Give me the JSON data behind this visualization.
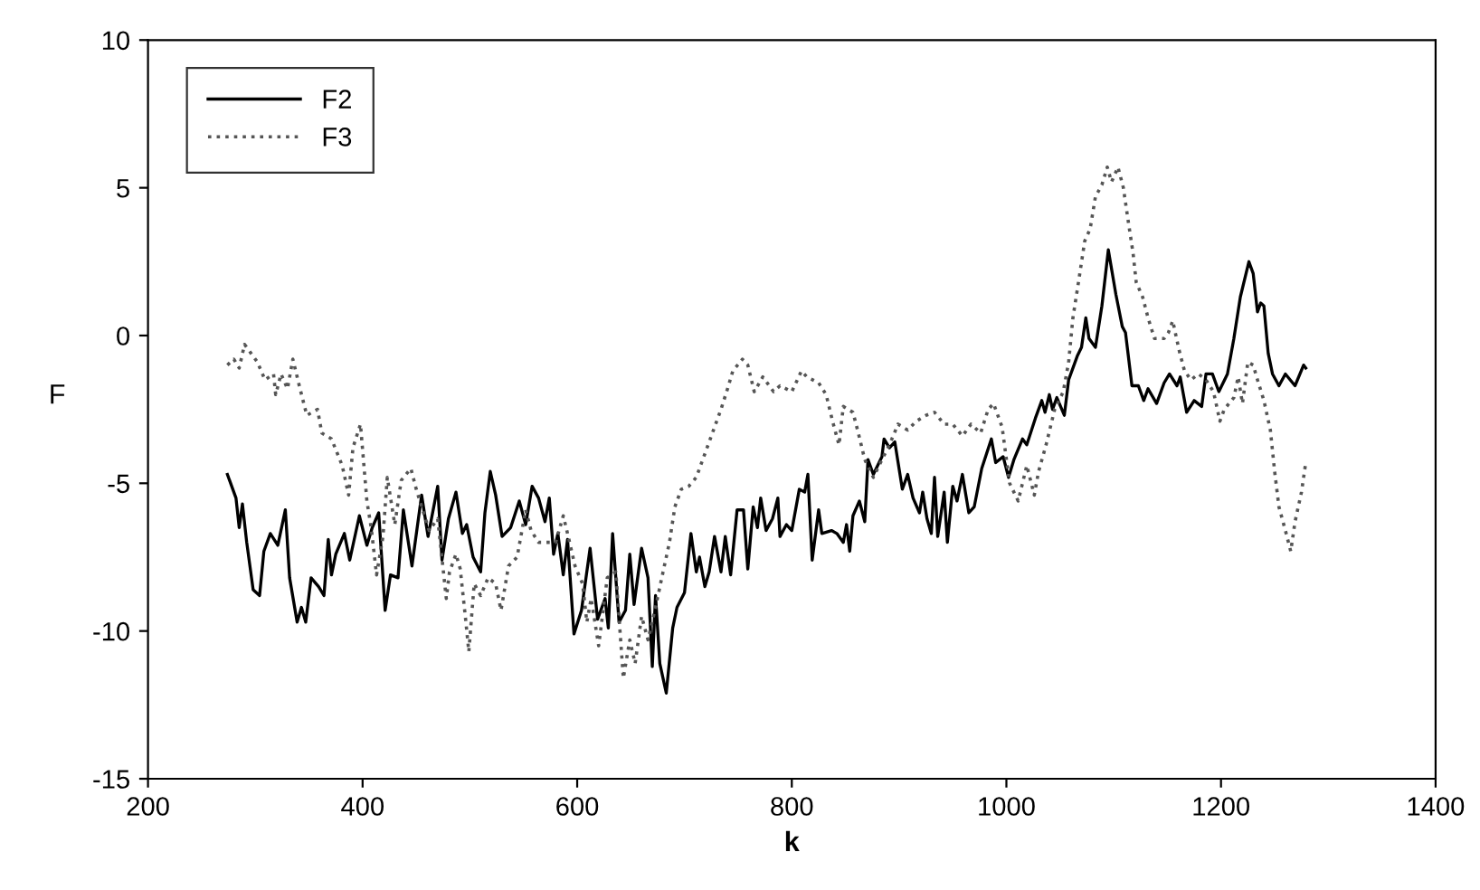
{
  "chart_data": {
    "type": "line",
    "xlabel": "k",
    "ylabel": "F",
    "xlim": [
      200,
      1400
    ],
    "xticks": [
      200,
      400,
      600,
      800,
      1000,
      1200,
      1400
    ],
    "ylim": [
      -15,
      10
    ],
    "yticks": [
      -15,
      -10,
      -5,
      0,
      5,
      10
    ],
    "grid": false,
    "legend": "top left",
    "marker": "none",
    "series": [
      {
        "name": "F2",
        "color": "#000000",
        "line_style": "solid",
        "x": [
          274,
          282,
          285,
          288,
          292,
          298,
          304,
          308,
          314,
          321,
          328,
          332,
          339,
          343,
          347,
          352,
          359,
          364,
          368,
          371,
          375,
          383,
          388,
          397,
          404,
          409,
          415,
          421,
          426,
          433,
          438,
          446,
          455,
          461,
          470,
          474,
          480,
          487,
          493,
          497,
          503,
          510,
          514,
          519,
          524,
          530,
          538,
          546,
          552,
          558,
          564,
          570,
          574,
          578,
          582,
          587,
          591,
          597,
          604,
          612,
          619,
          626,
          629,
          633,
          639,
          645,
          649,
          653,
          660,
          666,
          670,
          673,
          677,
          683,
          689,
          693,
          700,
          706,
          711,
          714,
          719,
          723,
          728,
          734,
          738,
          743,
          749,
          755,
          759,
          764,
          768,
          771,
          776,
          782,
          787,
          789,
          795,
          800,
          807,
          812,
          815,
          819,
          825,
          828,
          837,
          842,
          848,
          851,
          854,
          857,
          863,
          868,
          871,
          876,
          884,
          886,
          891,
          896,
          903,
          908,
          913,
          919,
          922,
          926,
          930,
          933,
          936,
          942,
          945,
          950,
          954,
          959,
          965,
          970,
          977,
          986,
          990,
          997,
          1002,
          1007,
          1015,
          1019,
          1027,
          1033,
          1036,
          1040,
          1043,
          1047,
          1054,
          1058,
          1066,
          1070,
          1074,
          1077,
          1083,
          1089,
          1095,
          1102,
          1108,
          1111,
          1117,
          1123,
          1128,
          1132,
          1140,
          1147,
          1152,
          1159,
          1162,
          1168,
          1175,
          1182,
          1186,
          1192,
          1198,
          1206,
          1212,
          1218,
          1226,
          1230,
          1234,
          1237,
          1240,
          1244,
          1248,
          1254,
          1260,
          1269,
          1277,
          1279
        ],
        "values": [
          -4.7,
          -5.5,
          -6.5,
          -5.7,
          -7.0,
          -8.6,
          -8.8,
          -7.3,
          -6.7,
          -7.1,
          -5.9,
          -8.2,
          -9.7,
          -9.2,
          -9.7,
          -8.2,
          -8.5,
          -8.8,
          -6.9,
          -8.1,
          -7.4,
          -6.7,
          -7.6,
          -6.1,
          -7.1,
          -6.5,
          -6.0,
          -9.3,
          -8.1,
          -8.2,
          -5.9,
          -7.8,
          -5.4,
          -6.8,
          -5.1,
          -7.6,
          -6.2,
          -5.3,
          -6.7,
          -6.4,
          -7.5,
          -8.0,
          -6.0,
          -4.6,
          -5.4,
          -6.8,
          -6.5,
          -5.6,
          -6.4,
          -5.1,
          -5.5,
          -6.3,
          -5.5,
          -7.4,
          -6.7,
          -8.1,
          -6.9,
          -10.1,
          -9.3,
          -7.2,
          -9.6,
          -8.9,
          -9.9,
          -6.7,
          -9.7,
          -9.3,
          -7.4,
          -9.1,
          -7.2,
          -8.2,
          -11.2,
          -8.8,
          -11.1,
          -12.1,
          -9.9,
          -9.2,
          -8.7,
          -6.7,
          -8.0,
          -7.5,
          -8.5,
          -8.0,
          -6.8,
          -8.0,
          -6.8,
          -8.1,
          -5.9,
          -5.9,
          -7.9,
          -5.8,
          -6.5,
          -5.5,
          -6.6,
          -6.2,
          -5.5,
          -6.8,
          -6.4,
          -6.6,
          -5.2,
          -5.3,
          -4.7,
          -7.6,
          -5.9,
          -6.7,
          -6.6,
          -6.7,
          -7.0,
          -6.4,
          -7.3,
          -6.1,
          -5.6,
          -6.3,
          -4.2,
          -4.7,
          -4.1,
          -3.5,
          -3.8,
          -3.6,
          -5.2,
          -4.7,
          -5.5,
          -6.0,
          -5.3,
          -6.2,
          -6.7,
          -4.8,
          -6.8,
          -5.3,
          -7.0,
          -5.1,
          -5.6,
          -4.7,
          -6.0,
          -5.8,
          -4.5,
          -3.5,
          -4.3,
          -4.1,
          -4.8,
          -4.2,
          -3.5,
          -3.7,
          -2.8,
          -2.2,
          -2.6,
          -2.0,
          -2.5,
          -2.1,
          -2.7,
          -1.5,
          -0.7,
          -0.4,
          0.6,
          -0.1,
          -0.4,
          1.0,
          2.9,
          1.4,
          0.3,
          0.1,
          -1.7,
          -1.7,
          -2.2,
          -1.8,
          -2.3,
          -1.6,
          -1.3,
          -1.7,
          -1.4,
          -2.6,
          -2.2,
          -2.4,
          -1.3,
          -1.3,
          -1.9,
          -1.3,
          -0.1,
          1.3,
          2.5,
          2.1,
          0.8,
          1.1,
          1.0,
          -0.6,
          -1.3,
          -1.7,
          -1.3,
          -1.7,
          -1.0,
          -1.1
        ]
      },
      {
        "name": "F3",
        "color": "#555555",
        "line_style": "dotted",
        "x": [
          274,
          280,
          285,
          290,
          296,
          302,
          309,
          317,
          319,
          324,
          330,
          335,
          341,
          348,
          358,
          362,
          371,
          381,
          387,
          391,
          398,
          404,
          408,
          413,
          419,
          423,
          430,
          436,
          445,
          450,
          462,
          470,
          478,
          481,
          487,
          491,
          496,
          499,
          504,
          510,
          517,
          524,
          529,
          536,
          544,
          552,
          557,
          564,
          573,
          580,
          587,
          591,
          598,
          605,
          609,
          613,
          620,
          628,
          636,
          643,
          649,
          654,
          660,
          666,
          673,
          680,
          686,
          691,
          697,
          704,
          711,
          717,
          724,
          734,
          741,
          745,
          754,
          759,
          765,
          773,
          783,
          789,
          800,
          809,
          814,
          825,
          832,
          838,
          844,
          848,
          857,
          862,
          868,
          876,
          884,
          891,
          899,
          908,
          916,
          925,
          933,
          942,
          950,
          959,
          967,
          976,
          983,
          988,
          996,
          1003,
          1011,
          1019,
          1026,
          1030,
          1037,
          1045,
          1053,
          1058,
          1062,
          1068,
          1073,
          1078,
          1083,
          1089,
          1094,
          1098,
          1104,
          1109,
          1113,
          1118,
          1121,
          1127,
          1132,
          1138,
          1147,
          1151,
          1155,
          1161,
          1166,
          1172,
          1179,
          1186,
          1193,
          1199,
          1203,
          1212,
          1216,
          1220,
          1225,
          1230,
          1234,
          1240,
          1246,
          1250,
          1254,
          1260,
          1265,
          1269,
          1275,
          1279
        ],
        "values": [
          -1.0,
          -0.8,
          -1.1,
          -0.3,
          -0.6,
          -0.9,
          -1.5,
          -1.3,
          -2.0,
          -1.3,
          -1.8,
          -0.8,
          -1.7,
          -2.7,
          -2.5,
          -3.3,
          -3.5,
          -4.4,
          -5.4,
          -3.8,
          -3.0,
          -5.6,
          -6.5,
          -8.1,
          -6.8,
          -4.8,
          -6.4,
          -4.9,
          -4.5,
          -5.2,
          -6.6,
          -6.2,
          -8.9,
          -8.0,
          -7.4,
          -7.9,
          -9.6,
          -10.7,
          -8.4,
          -8.8,
          -8.2,
          -8.4,
          -9.3,
          -7.8,
          -7.5,
          -5.9,
          -6.6,
          -7.0,
          -7.0,
          -7.0,
          -6.1,
          -6.7,
          -7.8,
          -8.4,
          -9.7,
          -8.9,
          -10.5,
          -8.2,
          -8.0,
          -11.6,
          -10.3,
          -11.1,
          -9.5,
          -10.3,
          -9.2,
          -8.0,
          -7.0,
          -5.8,
          -5.2,
          -5.1,
          -4.8,
          -4.2,
          -3.5,
          -2.5,
          -1.7,
          -1.2,
          -0.8,
          -1.0,
          -1.9,
          -1.4,
          -1.9,
          -1.7,
          -1.9,
          -1.2,
          -1.4,
          -1.6,
          -2.0,
          -2.9,
          -3.7,
          -2.4,
          -2.6,
          -3.3,
          -4.2,
          -4.8,
          -4.2,
          -3.7,
          -3.0,
          -3.2,
          -2.9,
          -2.7,
          -2.6,
          -3.0,
          -3.0,
          -3.4,
          -3.0,
          -3.3,
          -2.5,
          -2.3,
          -3.1,
          -5.0,
          -5.6,
          -4.4,
          -5.4,
          -4.6,
          -3.7,
          -2.5,
          -1.9,
          -0.9,
          0.6,
          2.0,
          3.2,
          3.6,
          4.7,
          5.1,
          5.7,
          5.2,
          5.7,
          5.0,
          4.0,
          2.8,
          1.8,
          1.3,
          0.6,
          -0.1,
          -0.1,
          0.1,
          0.5,
          -0.5,
          -1.2,
          -1.5,
          -1.3,
          -1.5,
          -1.9,
          -2.9,
          -2.5,
          -2.1,
          -1.4,
          -2.3,
          -0.9,
          -1.0,
          -1.5,
          -2.2,
          -3.2,
          -4.6,
          -5.8,
          -6.6,
          -7.3,
          -6.3,
          -5.3,
          -4.3
        ]
      }
    ]
  }
}
